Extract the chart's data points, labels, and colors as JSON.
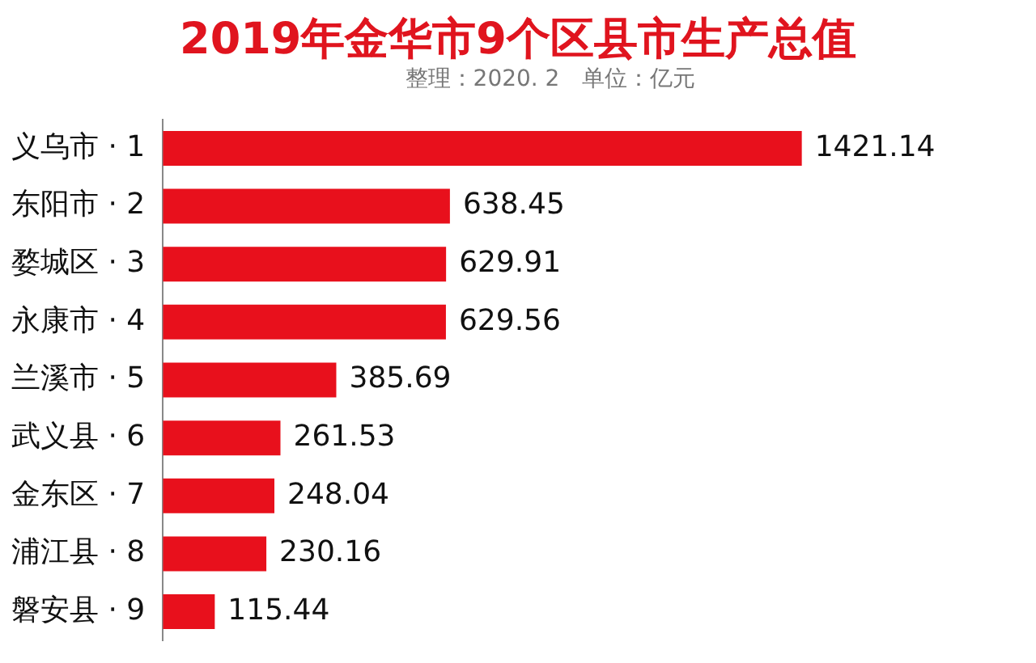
{
  "chart_data": {
    "type": "bar",
    "orientation": "horizontal",
    "title": "2019年金华市9个区县市生产总值",
    "subtitle": "整理：2020. 2　单位：亿元",
    "categories": [
      "义乌市 · 1",
      "东阳市 · 2",
      "婺城区 · 3",
      "永康市 · 4",
      "兰溪市 · 5",
      "武义县 · 6",
      "金东区 · 7",
      "浦江县 · 8",
      "磐安县 · 9"
    ],
    "values": [
      1421.14,
      638.45,
      629.91,
      629.56,
      385.69,
      261.53,
      248.04,
      230.16,
      115.44
    ],
    "color": "#e8101c",
    "data_labels": true,
    "tick_labels": "y",
    "grid": false,
    "legend": false
  }
}
